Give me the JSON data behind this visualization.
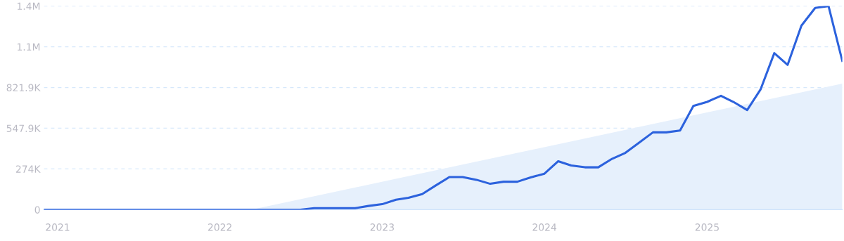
{
  "chart_data": {
    "type": "line",
    "x": [
      "2020-12",
      "2021-01",
      "2021-02",
      "2021-03",
      "2021-04",
      "2021-05",
      "2021-06",
      "2021-07",
      "2021-08",
      "2021-09",
      "2021-10",
      "2021-11",
      "2021-12",
      "2022-01",
      "2022-02",
      "2022-03",
      "2022-04",
      "2022-05",
      "2022-06",
      "2022-07",
      "2022-08",
      "2022-09",
      "2022-10",
      "2022-11",
      "2022-12",
      "2023-01",
      "2023-02",
      "2023-03",
      "2023-04",
      "2023-05",
      "2023-06",
      "2023-07",
      "2023-08",
      "2023-09",
      "2023-10",
      "2023-11",
      "2023-12",
      "2024-01",
      "2024-02",
      "2024-03",
      "2024-04",
      "2024-05",
      "2024-06",
      "2024-07",
      "2024-08",
      "2024-09",
      "2024-10",
      "2024-11",
      "2024-12",
      "2025-01",
      "2025-02",
      "2025-03",
      "2025-04",
      "2025-05",
      "2025-06",
      "2025-07",
      "2025-08",
      "2025-09",
      "2025-10",
      "2025-11"
    ],
    "series": [
      {
        "type": "area",
        "color": "#e6f0fc",
        "x": [
          "2022-03-12",
          "2025-11"
        ],
        "values": [
          0,
          848000
        ]
      },
      {
        "color": "#2c62dd",
        "values": [
          0,
          0,
          0,
          0,
          0,
          0,
          0,
          0,
          0,
          0,
          0,
          0,
          0,
          0,
          0,
          0,
          0,
          0,
          0,
          0,
          10000,
          10000,
          10000,
          10000,
          25000,
          37000,
          67000,
          80000,
          105000,
          162000,
          219000,
          219000,
          201000,
          174000,
          188000,
          188000,
          217000,
          242000,
          326000,
          297000,
          285000,
          285000,
          342000,
          382000,
          451000,
          520000,
          520000,
          532000,
          698000,
          725000,
          766000,
          725000,
          670000,
          808000,
          1053000,
          974000,
          1238000,
          1357000,
          1369000,
          1001000
        ]
      }
    ],
    "xlim": [
      "2020-12",
      "2025-11"
    ],
    "xticks": [
      "2021",
      "2022",
      "2023",
      "2024",
      "2025"
    ],
    "ylim": [
      0,
      1369800
    ],
    "yticks": [
      0,
      {
        "value": 274000,
        "label": "274K"
      },
      {
        "value": 547900,
        "label": "547.9K"
      },
      {
        "value": 821900,
        "label": "821.9K"
      },
      {
        "value": 1095800,
        "label": "1.1M"
      },
      {
        "value": 1369800,
        "label": "1.4M"
      }
    ],
    "grid": "y",
    "marker": "none",
    "line_style": "solid",
    "legend": false
  }
}
